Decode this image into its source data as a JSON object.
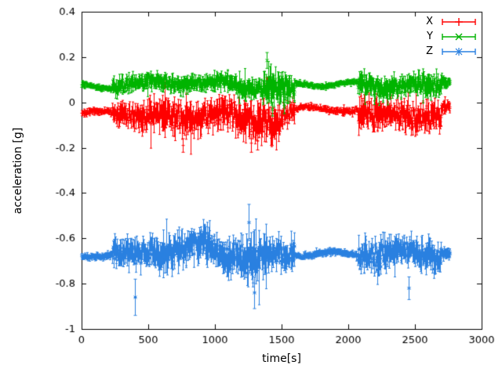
{
  "chart_data": {
    "type": "line",
    "style": "errorbars",
    "title": "",
    "xlabel": "time[s]",
    "ylabel": "acceleration [g]",
    "xlim": [
      0,
      3000
    ],
    "ylim": [
      -1,
      0.4
    ],
    "xticks": [
      0,
      500,
      1000,
      1500,
      2000,
      2500,
      3000
    ],
    "yticks": [
      -1,
      -0.8,
      -0.6,
      -0.4,
      -0.2,
      0,
      0.2,
      0.4
    ],
    "grid": false,
    "legend_position": "top-right-inside",
    "sample_step": 4,
    "t_end": 2760,
    "seed": 42,
    "series": [
      {
        "name": "X",
        "color": "#ff0000",
        "marker": "plus",
        "baseline": -0.05,
        "segments": [
          [
            0,
            230,
            -0.048,
            0.012
          ],
          [
            230,
            420,
            -0.05,
            0.04
          ],
          [
            420,
            600,
            -0.06,
            0.05
          ],
          [
            600,
            900,
            -0.07,
            0.06
          ],
          [
            900,
            1150,
            -0.05,
            0.05
          ],
          [
            1150,
            1500,
            -0.075,
            0.065
          ],
          [
            1500,
            1600,
            -0.05,
            0.04
          ],
          [
            1600,
            2070,
            -0.03,
            0.012
          ],
          [
            2070,
            2250,
            -0.06,
            0.055
          ],
          [
            2250,
            2450,
            -0.05,
            0.05
          ],
          [
            2450,
            2700,
            -0.06,
            0.05
          ],
          [
            2700,
            2760,
            -0.03,
            0.02
          ]
        ],
        "outliers": [
          [
            760,
            -0.19,
            0.03
          ],
          [
            1270,
            -0.18,
            0.04
          ],
          [
            1320,
            -0.17,
            0.04
          ],
          [
            1390,
            0.08,
            0.03
          ]
        ]
      },
      {
        "name": "Y",
        "color": "#00b400",
        "marker": "times",
        "baseline": 0.08,
        "segments": [
          [
            0,
            230,
            0.07,
            0.01
          ],
          [
            230,
            500,
            0.08,
            0.03
          ],
          [
            500,
            900,
            0.09,
            0.03
          ],
          [
            900,
            1150,
            0.08,
            0.03
          ],
          [
            1150,
            1350,
            0.07,
            0.035
          ],
          [
            1350,
            1450,
            0.06,
            0.055
          ],
          [
            1450,
            1600,
            0.05,
            0.05
          ],
          [
            1600,
            2070,
            0.08,
            0.01
          ],
          [
            2070,
            2300,
            0.07,
            0.04
          ],
          [
            2300,
            2500,
            0.08,
            0.035
          ],
          [
            2500,
            2700,
            0.07,
            0.04
          ],
          [
            2700,
            2760,
            0.09,
            0.02
          ]
        ],
        "outliers": [
          [
            1390,
            0.185,
            0.035
          ],
          [
            1430,
            -0.03,
            0.03
          ],
          [
            1520,
            -0.02,
            0.03
          ]
        ]
      },
      {
        "name": "Z",
        "color": "#2a80e0",
        "marker": "star",
        "baseline": -0.67,
        "segments": [
          [
            0,
            230,
            -0.675,
            0.012
          ],
          [
            230,
            500,
            -0.67,
            0.05
          ],
          [
            500,
            800,
            -0.655,
            0.06
          ],
          [
            800,
            1000,
            -0.63,
            0.055
          ],
          [
            1000,
            1200,
            -0.665,
            0.06
          ],
          [
            1200,
            1400,
            -0.68,
            0.08
          ],
          [
            1400,
            1600,
            -0.67,
            0.055
          ],
          [
            1600,
            2070,
            -0.67,
            0.012
          ],
          [
            2070,
            2300,
            -0.675,
            0.06
          ],
          [
            2300,
            2500,
            -0.66,
            0.05
          ],
          [
            2500,
            2700,
            -0.675,
            0.055
          ],
          [
            2700,
            2760,
            -0.66,
            0.02
          ]
        ],
        "outliers": [
          [
            400,
            -0.86,
            0.08
          ],
          [
            1250,
            -0.53,
            0.08
          ],
          [
            1295,
            -0.84,
            0.07
          ],
          [
            2450,
            -0.82,
            0.05
          ]
        ]
      }
    ]
  },
  "layout_colors": {
    "axis": "#000000",
    "background": "#ffffff"
  }
}
